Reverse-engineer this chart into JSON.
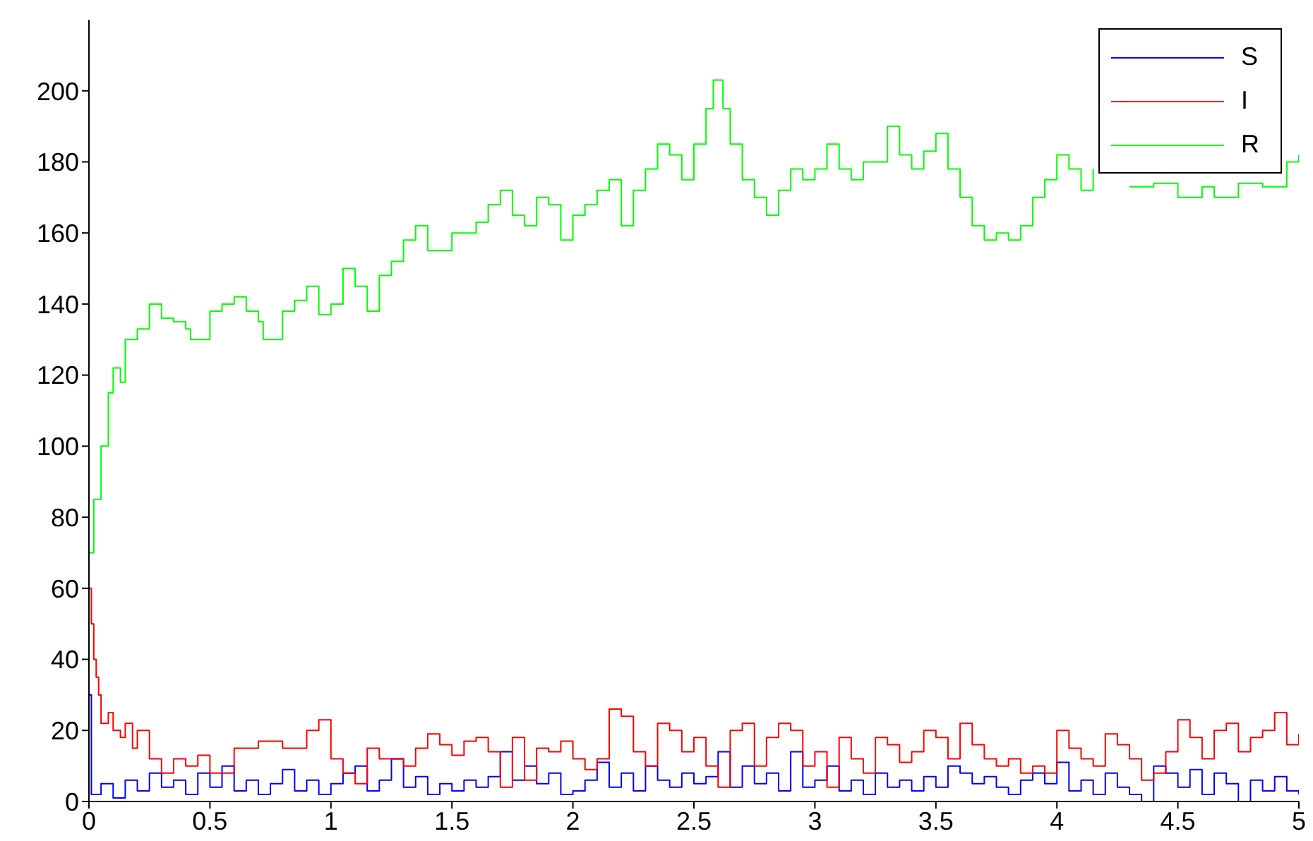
{
  "chart_data": {
    "type": "step",
    "xlim": [
      0,
      5
    ],
    "xticks": [
      0,
      0.5,
      1,
      1.5,
      2,
      2.5,
      3,
      3.5,
      4,
      4.5,
      5
    ],
    "ylim": [
      0,
      220
    ],
    "yticks": [
      0,
      20,
      40,
      60,
      80,
      100,
      120,
      140,
      160,
      180,
      200
    ],
    "legend": "top right",
    "series": [
      {
        "name": "S",
        "color": "#0000ff",
        "x": [
          0,
          0.01,
          0.05,
          0.1,
          0.15,
          0.2,
          0.25,
          0.3,
          0.35,
          0.4,
          0.45,
          0.5,
          0.55,
          0.6,
          0.65,
          0.7,
          0.75,
          0.8,
          0.85,
          0.9,
          0.95,
          1,
          1.05,
          1.1,
          1.15,
          1.2,
          1.25,
          1.3,
          1.35,
          1.4,
          1.45,
          1.5,
          1.55,
          1.6,
          1.65,
          1.7,
          1.75,
          1.8,
          1.85,
          1.9,
          1.95,
          2,
          2.05,
          2.1,
          2.15,
          2.2,
          2.25,
          2.3,
          2.35,
          2.4,
          2.45,
          2.5,
          2.55,
          2.6,
          2.65,
          2.7,
          2.75,
          2.8,
          2.85,
          2.9,
          2.95,
          3,
          3.05,
          3.1,
          3.15,
          3.2,
          3.25,
          3.3,
          3.35,
          3.4,
          3.45,
          3.5,
          3.55,
          3.6,
          3.65,
          3.7,
          3.75,
          3.8,
          3.85,
          3.9,
          3.95,
          4,
          4.05,
          4.1,
          4.15,
          4.2,
          4.25,
          4.3,
          4.35,
          4.4,
          4.45,
          4.5,
          4.55,
          4.6,
          4.65,
          4.7,
          4.75,
          4.8,
          4.85,
          4.9,
          4.95,
          5
        ],
        "values": [
          30,
          2,
          5,
          1,
          6,
          3,
          8,
          4,
          6,
          2,
          8,
          4,
          10,
          3,
          6,
          2,
          5,
          9,
          3,
          6,
          2,
          5,
          8,
          10,
          3,
          6,
          12,
          4,
          7,
          2,
          5,
          3,
          6,
          4,
          7,
          14,
          6,
          10,
          5,
          8,
          2,
          3,
          6,
          11,
          4,
          8,
          3,
          10,
          6,
          4,
          8,
          5,
          7,
          14,
          4,
          10,
          5,
          8,
          3,
          14,
          4,
          6,
          10,
          3,
          6,
          2,
          8,
          4,
          6,
          3,
          7,
          4,
          10,
          8,
          5,
          7,
          4,
          2,
          6,
          8,
          5,
          11,
          3,
          6,
          2,
          8,
          4,
          2,
          0,
          10,
          8,
          4,
          9,
          2,
          8,
          5,
          0,
          6,
          3,
          7,
          3,
          2
        ]
      },
      {
        "name": "I",
        "color": "#ff0000",
        "x": [
          0,
          0.01,
          0.02,
          0.03,
          0.04,
          0.05,
          0.08,
          0.1,
          0.13,
          0.15,
          0.18,
          0.2,
          0.25,
          0.3,
          0.35,
          0.4,
          0.45,
          0.5,
          0.55,
          0.6,
          0.7,
          0.8,
          0.9,
          0.95,
          1,
          1.05,
          1.1,
          1.15,
          1.2,
          1.3,
          1.35,
          1.4,
          1.45,
          1.5,
          1.55,
          1.6,
          1.65,
          1.7,
          1.75,
          1.8,
          1.85,
          1.9,
          1.95,
          2,
          2.05,
          2.1,
          2.15,
          2.2,
          2.25,
          2.3,
          2.35,
          2.4,
          2.45,
          2.5,
          2.55,
          2.6,
          2.65,
          2.7,
          2.75,
          2.8,
          2.85,
          2.9,
          2.95,
          3,
          3.05,
          3.1,
          3.15,
          3.2,
          3.25,
          3.3,
          3.35,
          3.4,
          3.45,
          3.5,
          3.55,
          3.6,
          3.65,
          3.7,
          3.75,
          3.8,
          3.85,
          3.9,
          3.95,
          4,
          4.05,
          4.1,
          4.15,
          4.2,
          4.25,
          4.3,
          4.35,
          4.4,
          4.45,
          4.5,
          4.55,
          4.6,
          4.65,
          4.7,
          4.75,
          4.8,
          4.85,
          4.9,
          4.95,
          5
        ],
        "values": [
          60,
          50,
          40,
          35,
          30,
          22,
          25,
          20,
          18,
          22,
          15,
          20,
          12,
          8,
          12,
          10,
          13,
          8,
          8,
          15,
          17,
          15,
          20,
          23,
          12,
          8,
          5,
          15,
          12,
          10,
          15,
          19,
          16,
          13,
          17,
          18,
          14,
          4,
          18,
          6,
          15,
          14,
          17,
          12,
          9,
          12,
          26,
          24,
          14,
          10,
          22,
          20,
          14,
          18,
          10,
          4,
          20,
          22,
          10,
          18,
          22,
          20,
          10,
          14,
          4,
          18,
          12,
          8,
          18,
          16,
          11,
          14,
          20,
          18,
          12,
          22,
          16,
          12,
          10,
          12,
          8,
          10,
          8,
          20,
          15,
          12,
          10,
          19,
          16,
          12,
          6,
          8,
          14,
          23,
          18,
          12,
          20,
          22,
          14,
          18,
          20,
          25,
          16,
          19
        ]
      },
      {
        "name": "R",
        "color": "#00ff00",
        "x": [
          0,
          0.02,
          0.05,
          0.08,
          0.1,
          0.13,
          0.15,
          0.2,
          0.25,
          0.3,
          0.35,
          0.4,
          0.42,
          0.5,
          0.55,
          0.6,
          0.65,
          0.7,
          0.72,
          0.8,
          0.85,
          0.9,
          0.95,
          1,
          1.05,
          1.1,
          1.15,
          1.2,
          1.25,
          1.3,
          1.35,
          1.4,
          1.5,
          1.6,
          1.65,
          1.7,
          1.75,
          1.8,
          1.85,
          1.9,
          1.95,
          2,
          2.05,
          2.1,
          2.15,
          2.2,
          2.25,
          2.3,
          2.35,
          2.4,
          2.45,
          2.5,
          2.55,
          2.58,
          2.62,
          2.65,
          2.7,
          2.75,
          2.8,
          2.85,
          2.9,
          2.95,
          3,
          3.05,
          3.1,
          3.15,
          3.2,
          3.3,
          3.35,
          3.4,
          3.45,
          3.5,
          3.55,
          3.6,
          3.65,
          3.7,
          3.75,
          3.8,
          3.85,
          3.9,
          3.95,
          4,
          4.05,
          4.1,
          4.15,
          4.2,
          4.3,
          4.4,
          4.5,
          4.6,
          4.65,
          4.75,
          4.85,
          4.95,
          5
        ],
        "values": [
          70,
          85,
          100,
          115,
          122,
          118,
          130,
          133,
          140,
          136,
          135,
          133,
          130,
          138,
          140,
          142,
          138,
          135,
          130,
          138,
          141,
          145,
          137,
          140,
          150,
          145,
          138,
          148,
          152,
          158,
          162,
          155,
          160,
          163,
          168,
          172,
          165,
          162,
          170,
          168,
          158,
          165,
          168,
          172,
          175,
          162,
          172,
          178,
          185,
          182,
          175,
          185,
          195,
          203,
          195,
          185,
          175,
          170,
          165,
          172,
          178,
          175,
          178,
          185,
          178,
          175,
          180,
          190,
          182,
          178,
          183,
          188,
          178,
          170,
          162,
          158,
          160,
          158,
          162,
          170,
          175,
          182,
          178,
          172,
          178,
          null,
          173,
          174,
          170,
          173,
          170,
          174,
          173,
          180,
          182
        ]
      }
    ]
  }
}
